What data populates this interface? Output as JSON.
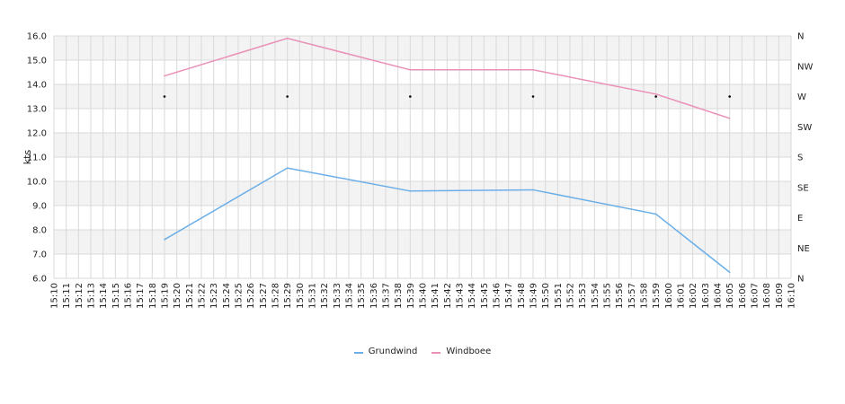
{
  "chart_data": {
    "type": "line",
    "ylabel": "kts",
    "ylim": [
      6.0,
      16.0
    ],
    "y_ticks": [
      "6.0",
      "7.0",
      "8.0",
      "9.0",
      "10.0",
      "11.0",
      "12.0",
      "13.0",
      "14.0",
      "15.0",
      "16.0"
    ],
    "right_axis_ticks": [
      "N",
      "NE",
      "E",
      "SE",
      "S",
      "SW",
      "W",
      "NW",
      "N"
    ],
    "right_axis_range": [
      0,
      360
    ],
    "x_ticks": [
      "15:10",
      "15:11",
      "15:12",
      "15:13",
      "15:14",
      "15:15",
      "15:16",
      "15:17",
      "15:18",
      "15:19",
      "15:20",
      "15:21",
      "15:22",
      "15:23",
      "15:24",
      "15:25",
      "15:26",
      "15:27",
      "15:28",
      "15:29",
      "15:30",
      "15:31",
      "15:32",
      "15:33",
      "15:34",
      "15:35",
      "15:36",
      "15:37",
      "15:38",
      "15:39",
      "15:40",
      "15:41",
      "15:42",
      "15:43",
      "15:44",
      "15:45",
      "15:46",
      "15:47",
      "15:48",
      "15:49",
      "15:50",
      "15:51",
      "15:52",
      "15:53",
      "15:54",
      "15:55",
      "15:56",
      "15:57",
      "15:58",
      "15:59",
      "16:00",
      "16:01",
      "16:02",
      "16:03",
      "16:04",
      "16:05",
      "16:06",
      "16:07",
      "16:08",
      "16:09",
      "16:10"
    ],
    "series": [
      {
        "name": "Grundwind",
        "color": "#6aaee8",
        "x": [
          "15:19",
          "15:29",
          "15:39",
          "15:49",
          "15:59",
          "16:05"
        ],
        "values": [
          7.6,
          10.55,
          9.6,
          9.65,
          8.65,
          6.25
        ]
      },
      {
        "name": "Windboee",
        "color": "#ea8fb6",
        "x": [
          "15:19",
          "15:29",
          "15:39",
          "15:49",
          "15:59",
          "16:05"
        ],
        "values": [
          14.35,
          15.9,
          14.6,
          14.6,
          13.6,
          12.6
        ]
      }
    ],
    "direction_points": {
      "x": [
        "15:19",
        "15:29",
        "15:39",
        "15:49",
        "15:59",
        "16:05"
      ],
      "direction_deg": [
        270,
        270,
        270,
        270,
        270,
        270
      ],
      "color": "#000000"
    },
    "grid": true,
    "legend": "bottom-center"
  }
}
